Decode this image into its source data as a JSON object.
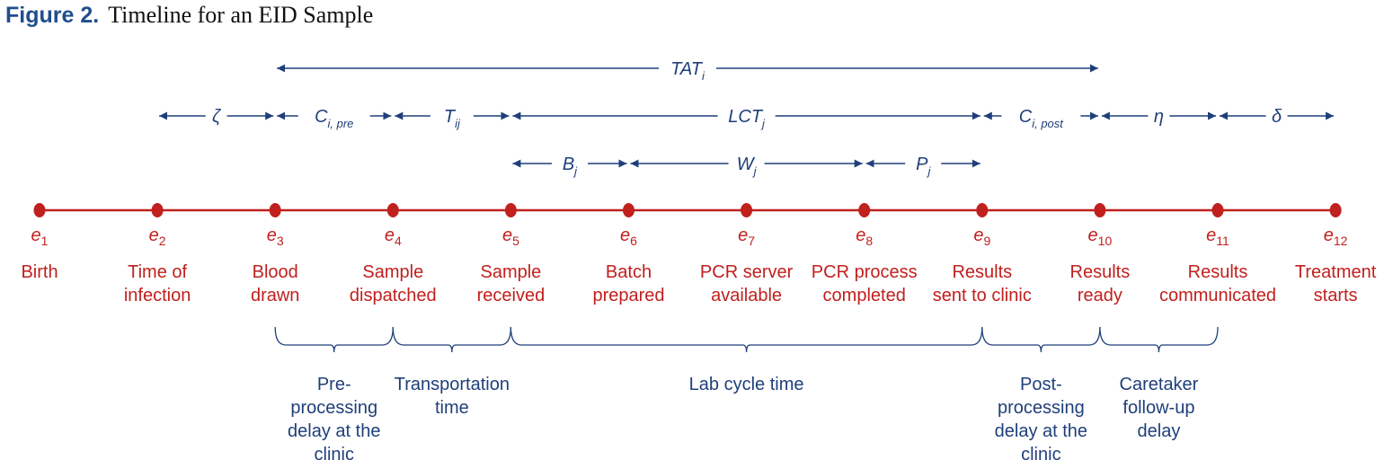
{
  "figure": {
    "label": "Figure 2.",
    "title": "Timeline for an EID Sample"
  },
  "events": [
    {
      "symbol": "e",
      "sub": "1",
      "lines": [
        "Birth"
      ]
    },
    {
      "symbol": "e",
      "sub": "2",
      "lines": [
        "Time of",
        "infection"
      ]
    },
    {
      "symbol": "e",
      "sub": "3",
      "lines": [
        "Blood",
        "drawn"
      ]
    },
    {
      "symbol": "e",
      "sub": "4",
      "lines": [
        "Sample",
        "dispatched"
      ]
    },
    {
      "symbol": "e",
      "sub": "5",
      "lines": [
        "Sample",
        "received"
      ]
    },
    {
      "symbol": "e",
      "sub": "6",
      "lines": [
        "Batch",
        "prepared"
      ]
    },
    {
      "symbol": "e",
      "sub": "7",
      "lines": [
        "PCR server",
        "available"
      ]
    },
    {
      "symbol": "e",
      "sub": "8",
      "lines": [
        "PCR process",
        "completed"
      ]
    },
    {
      "symbol": "e",
      "sub": "9",
      "lines": [
        "Results",
        "sent to clinic"
      ]
    },
    {
      "symbol": "e",
      "sub": "10",
      "lines": [
        "Results",
        "ready"
      ]
    },
    {
      "symbol": "e",
      "sub": "11",
      "lines": [
        "Results",
        "communicated"
      ]
    },
    {
      "symbol": "e",
      "sub": "12",
      "lines": [
        "Treatment",
        "starts"
      ]
    }
  ],
  "intervals": [
    {
      "name": "TAT",
      "sub": "i",
      "from": 3,
      "to": 10,
      "row": 1
    },
    {
      "name": "ζ",
      "sub": "",
      "from": 2,
      "to": 3,
      "row": 2
    },
    {
      "name": "C",
      "sub": "i, pre",
      "from": 3,
      "to": 4,
      "row": 2
    },
    {
      "name": "T",
      "sub": "ij",
      "from": 4,
      "to": 5,
      "row": 2
    },
    {
      "name": "LCT",
      "sub": "j",
      "from": 5,
      "to": 9,
      "row": 2
    },
    {
      "name": "C",
      "sub": "i, post",
      "from": 9,
      "to": 10,
      "row": 2
    },
    {
      "name": "η",
      "sub": "",
      "from": 10,
      "to": 11,
      "row": 2
    },
    {
      "name": "δ",
      "sub": "",
      "from": 11,
      "to": 12,
      "row": 2
    },
    {
      "name": "B",
      "sub": "j",
      "from": 5,
      "to": 6,
      "row": 3
    },
    {
      "name": "W",
      "sub": "j",
      "from": 6,
      "to": 8,
      "row": 3
    },
    {
      "name": "P",
      "sub": "j",
      "from": 8,
      "to": 9,
      "row": 3
    }
  ],
  "braces": [
    {
      "from": 3,
      "to": 4,
      "lines": [
        "Pre-",
        "processing",
        "delay at the",
        "clinic"
      ]
    },
    {
      "from": 4,
      "to": 5,
      "lines": [
        "Transportation",
        "time"
      ]
    },
    {
      "from": 5,
      "to": 9,
      "lines": [
        "Lab cycle time"
      ]
    },
    {
      "from": 9,
      "to": 10,
      "lines": [
        "Post-",
        "processing",
        "delay at the",
        "clinic"
      ]
    },
    {
      "from": 10,
      "to": 11,
      "lines": [
        "Caretaker",
        "follow-up",
        "delay"
      ]
    }
  ],
  "colors": {
    "timeline_red": "#c0201e",
    "arrow_blue": "#1f3f7a"
  }
}
